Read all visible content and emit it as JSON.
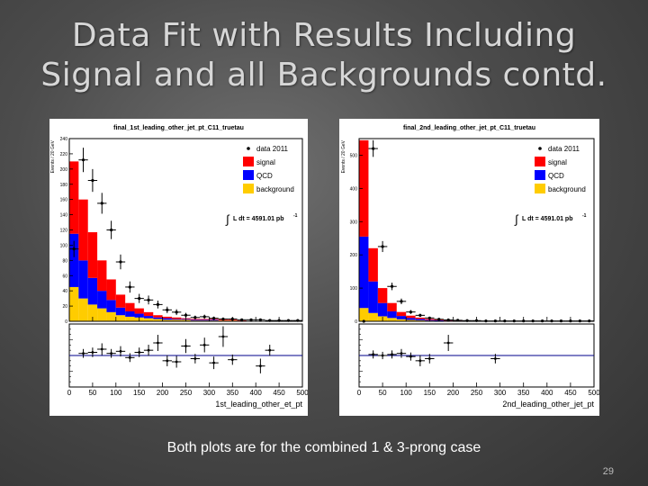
{
  "slide": {
    "title_line1": "Data Fit with Results Including",
    "title_line2": "Signal and all Backgrounds contd.",
    "caption": "Both plots are for the combined 1 & 3-prong case",
    "page_number": "29"
  },
  "colors": {
    "signal": "#ff0000",
    "qcd": "#0000ff",
    "background": "#ffcc00",
    "data": "#000000",
    "ratio_line": "#00008b"
  },
  "chart_data": [
    {
      "type": "bar",
      "stacked": true,
      "title": "final_1st_leading_other_jet_pt_C11_truetau",
      "xlabel": "1st_leading_other_et_pt",
      "ylabel": "Events / 20 GeV",
      "xlim": [
        0,
        500
      ],
      "ylim": [
        0,
        240
      ],
      "bin_width": 20,
      "y_ticks": [
        0,
        20,
        40,
        60,
        80,
        100,
        120,
        140,
        160,
        180,
        200,
        220,
        240
      ],
      "x_ticks": [
        0,
        50,
        100,
        150,
        200,
        250,
        300,
        350,
        400,
        450,
        500
      ],
      "legend": [
        "data 2011",
        "signal",
        "QCD",
        "background"
      ],
      "legend_position": "top-right",
      "luminosity_label": "L dt = 4591.01 pb",
      "luminosity_exp": "-1",
      "bins": [
        20,
        40,
        60,
        80,
        100,
        120,
        140,
        160,
        180,
        200,
        220,
        240,
        260,
        280,
        300,
        320,
        340,
        360,
        380,
        400,
        420,
        440,
        460,
        480,
        500
      ],
      "series": [
        {
          "name": "background",
          "values": [
            45,
            30,
            22,
            17,
            12,
            8,
            6,
            5,
            4,
            3,
            2,
            2,
            2,
            1,
            1,
            1,
            1,
            1,
            0,
            0,
            0,
            0,
            0,
            0,
            0
          ]
        },
        {
          "name": "QCD",
          "values": [
            70,
            50,
            35,
            23,
            16,
            10,
            7,
            5,
            3,
            2,
            2,
            1,
            1,
            1,
            1,
            1,
            0,
            0,
            0,
            0,
            0,
            0,
            0,
            0,
            0
          ]
        },
        {
          "name": "signal",
          "values": [
            95,
            80,
            60,
            40,
            27,
            17,
            11,
            7,
            5,
            3,
            2,
            2,
            1,
            1,
            1,
            1,
            1,
            1,
            1,
            0,
            0,
            0,
            0,
            0,
            0
          ]
        }
      ],
      "data_points": [
        {
          "x": 10,
          "y": 95
        },
        {
          "x": 30,
          "y": 212
        },
        {
          "x": 50,
          "y": 185
        },
        {
          "x": 70,
          "y": 155
        },
        {
          "x": 90,
          "y": 120
        },
        {
          "x": 110,
          "y": 78
        },
        {
          "x": 130,
          "y": 45
        },
        {
          "x": 150,
          "y": 30
        },
        {
          "x": 170,
          "y": 28
        },
        {
          "x": 190,
          "y": 22
        },
        {
          "x": 210,
          "y": 15
        },
        {
          "x": 230,
          "y": 12
        },
        {
          "x": 250,
          "y": 8
        },
        {
          "x": 270,
          "y": 5
        },
        {
          "x": 290,
          "y": 6
        },
        {
          "x": 310,
          "y": 4
        },
        {
          "x": 330,
          "y": 3
        },
        {
          "x": 350,
          "y": 3
        },
        {
          "x": 370,
          "y": 2
        },
        {
          "x": 390,
          "y": 2
        },
        {
          "x": 410,
          "y": 2
        },
        {
          "x": 430,
          "y": 1
        },
        {
          "x": 450,
          "y": 1
        },
        {
          "x": 470,
          "y": 1
        },
        {
          "x": 490,
          "y": 1
        }
      ],
      "ratio_points": [
        {
          "x": 30,
          "y": 0.02
        },
        {
          "x": 50,
          "y": 0.03
        },
        {
          "x": 70,
          "y": 0.06
        },
        {
          "x": 90,
          "y": 0.02
        },
        {
          "x": 110,
          "y": 0.04
        },
        {
          "x": 130,
          "y": -0.02
        },
        {
          "x": 150,
          "y": 0.03
        },
        {
          "x": 170,
          "y": 0.05
        },
        {
          "x": 190,
          "y": 0.12
        },
        {
          "x": 210,
          "y": -0.05
        },
        {
          "x": 230,
          "y": -0.06
        },
        {
          "x": 250,
          "y": 0.09
        },
        {
          "x": 270,
          "y": -0.03
        },
        {
          "x": 290,
          "y": 0.1
        },
        {
          "x": 310,
          "y": -0.07
        },
        {
          "x": 330,
          "y": 0.18
        },
        {
          "x": 350,
          "y": -0.04
        },
        {
          "x": 410,
          "y": -0.1
        },
        {
          "x": 430,
          "y": 0.05
        }
      ],
      "ratio_ylim": [
        -0.3,
        0.3
      ]
    },
    {
      "type": "bar",
      "stacked": true,
      "title": "final_2nd_leading_other_jet_pt_C11_truetau",
      "xlabel": "2nd_leading_other_jet_pt",
      "ylabel": "Events / 20 GeV",
      "xlim": [
        0,
        500
      ],
      "ylim": [
        0,
        550
      ],
      "bin_width": 20,
      "y_ticks": [
        0,
        100,
        200,
        300,
        400,
        500
      ],
      "x_ticks": [
        0,
        50,
        100,
        150,
        200,
        250,
        300,
        350,
        400,
        450,
        500
      ],
      "legend": [
        "data 2011",
        "signal",
        "QCD",
        "background"
      ],
      "legend_position": "top-right",
      "luminosity_label": "L dt = 4591.01 pb",
      "luminosity_exp": "-1",
      "bins": [
        20,
        40,
        60,
        80,
        100,
        120,
        140,
        160,
        180,
        200,
        220,
        240,
        260,
        280,
        300,
        320,
        340,
        360,
        380,
        400,
        420,
        440,
        460,
        480,
        500
      ],
      "series": [
        {
          "name": "background",
          "values": [
            40,
            25,
            15,
            10,
            6,
            4,
            3,
            2,
            1,
            1,
            1,
            0,
            0,
            0,
            0,
            0,
            0,
            0,
            0,
            0,
            0,
            0,
            0,
            0,
            0
          ]
        },
        {
          "name": "QCD",
          "values": [
            215,
            95,
            40,
            20,
            10,
            6,
            4,
            2,
            2,
            1,
            1,
            0,
            0,
            0,
            0,
            0,
            0,
            0,
            0,
            0,
            0,
            0,
            0,
            0,
            0
          ]
        },
        {
          "name": "signal",
          "values": [
            290,
            100,
            45,
            25,
            12,
            7,
            4,
            3,
            2,
            1,
            1,
            0,
            0,
            0,
            0,
            0,
            0,
            0,
            0,
            0,
            0,
            0,
            0,
            0,
            0
          ]
        }
      ],
      "data_points": [
        {
          "x": 10,
          "y": 0
        },
        {
          "x": 30,
          "y": 520
        },
        {
          "x": 50,
          "y": 225
        },
        {
          "x": 70,
          "y": 105
        },
        {
          "x": 90,
          "y": 60
        },
        {
          "x": 110,
          "y": 28
        },
        {
          "x": 130,
          "y": 18
        },
        {
          "x": 150,
          "y": 10
        },
        {
          "x": 170,
          "y": 6
        },
        {
          "x": 190,
          "y": 4
        },
        {
          "x": 210,
          "y": 3
        },
        {
          "x": 230,
          "y": 2
        },
        {
          "x": 250,
          "y": 2
        },
        {
          "x": 270,
          "y": 1
        },
        {
          "x": 290,
          "y": 1
        },
        {
          "x": 310,
          "y": 1
        },
        {
          "x": 330,
          "y": 1
        },
        {
          "x": 350,
          "y": 1
        },
        {
          "x": 370,
          "y": 1
        },
        {
          "x": 390,
          "y": 1
        },
        {
          "x": 410,
          "y": 1
        },
        {
          "x": 430,
          "y": 1
        },
        {
          "x": 450,
          "y": 1
        },
        {
          "x": 470,
          "y": 1
        },
        {
          "x": 490,
          "y": 1
        }
      ],
      "ratio_points": [
        {
          "x": 30,
          "y": 0.01
        },
        {
          "x": 50,
          "y": 0.0
        },
        {
          "x": 70,
          "y": 0.01
        },
        {
          "x": 90,
          "y": 0.02
        },
        {
          "x": 110,
          "y": -0.01
        },
        {
          "x": 130,
          "y": -0.05
        },
        {
          "x": 150,
          "y": -0.03
        },
        {
          "x": 190,
          "y": 0.12
        },
        {
          "x": 290,
          "y": -0.03
        }
      ],
      "ratio_ylim": [
        -0.3,
        0.3
      ]
    }
  ]
}
